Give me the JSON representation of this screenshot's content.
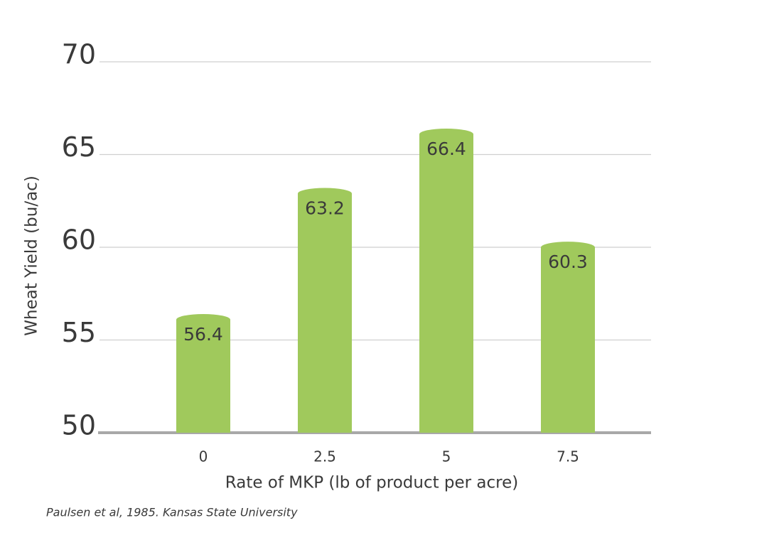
{
  "chart_data": {
    "type": "bar",
    "categories": [
      "0",
      "2.5",
      "5",
      "7.5"
    ],
    "values": [
      56.4,
      63.2,
      66.4,
      60.3
    ],
    "color": "#a0c95c",
    "ylim": [
      50,
      70
    ],
    "yticks": [
      50,
      55,
      60,
      65,
      70
    ],
    "grid": true,
    "y_label": "Wheat Yield (bu/ac)",
    "x_label": "Rate of MKP (lb of product per acre)",
    "source": "Paulsen et al, 1985. Kansas State University"
  }
}
